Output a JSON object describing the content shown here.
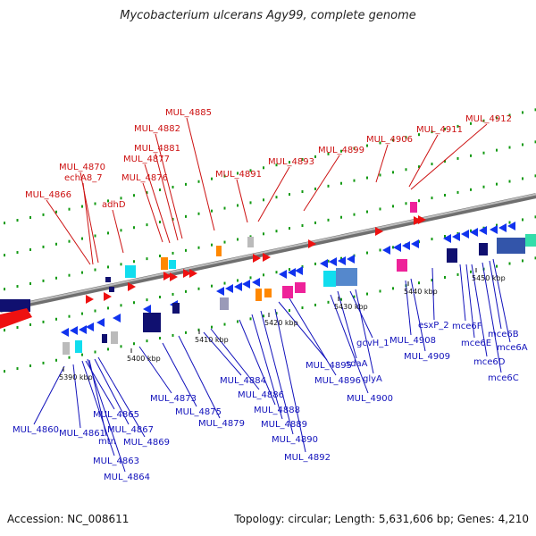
{
  "title": "Mycobacterium ulcerans Agy99, complete genome",
  "footer": {
    "accession": "Accession: NC_008611",
    "summary": "Topology: circular; Length: 5,631,606 bp; Genes: 4,210"
  },
  "scale_labels": [
    "5390 kbp",
    "5400 kbp",
    "5410 kbp",
    "5420 kbp",
    "5430 kbp",
    "5440 kbp",
    "5450 kbp"
  ],
  "top_labels": [
    "MUL_4866",
    "echA8_7",
    "MUL_4870",
    "adhD",
    "MUL_4876",
    "MUL_4877",
    "MUL_4881",
    "MUL_4882",
    "MUL_4885",
    "MUL_4891",
    "MUL_4893",
    "MUL_4899",
    "MUL_4906",
    "MUL_4911",
    "MUL_4912"
  ],
  "bottom_labels": [
    "MUL_4860",
    "MUL_4861",
    "MUL_4865",
    "mtn",
    "MUL_4867",
    "MUL_4869",
    "MUL_4863",
    "MUL_4864",
    "MUL_4873",
    "MUL_4875",
    "MUL_4879",
    "MUL_4884",
    "MUL_4886",
    "MUL_4888",
    "MUL_4889",
    "MUL_4890",
    "MUL_4892",
    "MUL_4895",
    "MUL_4896",
    "MUL_4900",
    "sdaA",
    "gcvH_1",
    "glyA",
    "MUL_4908",
    "MUL_4909",
    "esxP_2",
    "mce6F",
    "mce6E",
    "mce6D",
    "mce6C",
    "mce6B",
    "mce6A"
  ],
  "colors": {
    "backbone": "#8a8a8a",
    "top_label": "#cc1111",
    "bottom_label": "#1111bb",
    "gene_red": "#ee1111",
    "gene_blue": "#1133ee",
    "gene_navy": "#101070",
    "gene_cyan": "#11ddee",
    "gene_magenta": "#ee2299",
    "gene_orange": "#ff8800",
    "tick_green": "#119911"
  }
}
